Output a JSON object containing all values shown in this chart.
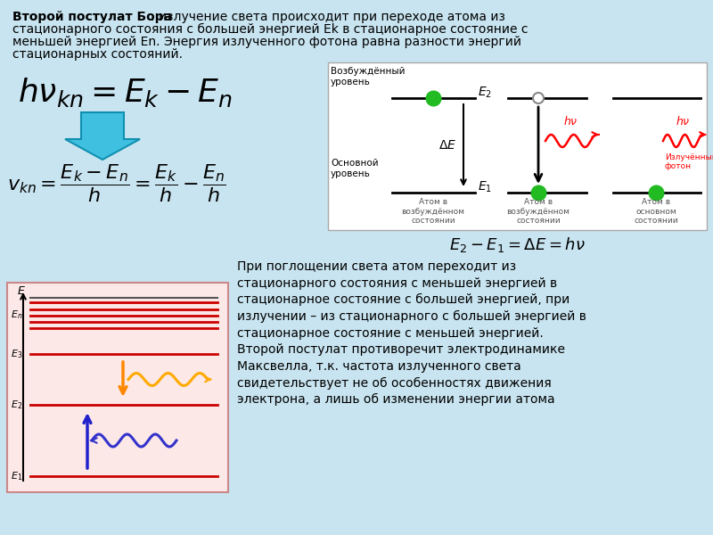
{
  "bg_color": "#c8e4f0",
  "title_bold": "Второй постулат Бора",
  "title_rest": ": излучение света происходит при переходе атома из",
  "title_line2": "стационарного состояния с большей энергией Ek в стационарное состояние с",
  "title_line3": "меньшей энергией En. Энергия излученного фотона равна разности энергий",
  "title_line4": "стационарных состояний.",
  "bottom_text": "При поглощении света атом переходит из\nстационарного состояния с меньшей энергией в\nстационарное состояние с большей энергией, при\nизлучении – из стационарного с большей энергией в\nстационарное состояние с меньшей энергией.\nВторой постулат противоречит электродинамике\nМаксвелла, т.к. частота излученного света\nсвидетельствует не об особенностях движения\nэлектрона, а лишь об изменении энергии атома",
  "red": "#cc0000",
  "orange": "#ff8800",
  "orange_wave": "#ffaa00",
  "blue": "#2222cc",
  "blue_wave": "#3333cc",
  "green": "#22bb22",
  "cyan_arrow": "#40c0e0",
  "cyan_edge": "#1090b0",
  "diag_bg": "#fde8e8",
  "diag_edge": "#cc8888"
}
